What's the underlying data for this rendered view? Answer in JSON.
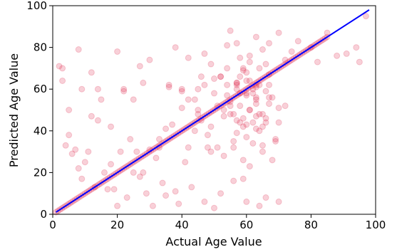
{
  "chart_data": {
    "type": "scatter",
    "title": "",
    "xlabel": "Actual Age Value",
    "ylabel": "Predicted Age Value",
    "xlim": [
      0,
      100
    ],
    "ylim": [
      0,
      100
    ],
    "xticks": [
      "0",
      "20",
      "40",
      "60",
      "80",
      "100"
    ],
    "yticks": [
      "0",
      "20",
      "40",
      "60",
      "80",
      "100"
    ],
    "grid": false,
    "legend": "none",
    "colors": {
      "points": "#dc143c",
      "line": "#0000ff",
      "axis": "#000000"
    },
    "point_opacity": 0.2,
    "reference_line": {
      "x": [
        1,
        98
      ],
      "y": [
        1,
        98
      ]
    },
    "series": [
      {
        "x": [
          3,
          5,
          8,
          9,
          12,
          14,
          18,
          20,
          22,
          25,
          27,
          28,
          30,
          33,
          35,
          36,
          38,
          40,
          42,
          45,
          47,
          49,
          52,
          54,
          55,
          57,
          59,
          61,
          63,
          65,
          67,
          70,
          72,
          74,
          76,
          80,
          82,
          85,
          88,
          91,
          94,
          95,
          97,
          2,
          3,
          4,
          5,
          6,
          7,
          8,
          9,
          10,
          11,
          12,
          13,
          14,
          15,
          16,
          17,
          18,
          19,
          20,
          21,
          22,
          23,
          24,
          25,
          26,
          27,
          28,
          29,
          30,
          31,
          32,
          33,
          34,
          35,
          36,
          37,
          38,
          39,
          40,
          41,
          42,
          43,
          44,
          45,
          46,
          47,
          48,
          49,
          50,
          51,
          52,
          53,
          54,
          55,
          56,
          57,
          58,
          59,
          60,
          61,
          62,
          63,
          64,
          65,
          66,
          67,
          68,
          69,
          70
        ],
        "y": [
          64,
          50,
          79,
          60,
          68,
          45,
          42,
          78,
          60,
          55,
          71,
          63,
          74,
          36,
          41,
          61,
          80,
          59,
          75,
          60,
          77,
          72,
          66,
          81,
          88,
          82,
          70,
          76,
          85,
          79,
          82,
          87,
          74,
          78,
          83,
          80,
          73,
          87,
          76,
          77,
          80,
          73,
          95,
          71,
          70,
          33,
          38,
          29,
          31,
          22,
          17,
          25,
          30,
          47,
          13,
          60,
          55,
          20,
          12,
          24,
          12,
          4,
          30,
          59,
          8,
          36,
          20,
          30,
          18,
          20,
          10,
          31,
          4,
          27,
          32,
          15,
          9,
          62,
          43,
          11,
          5,
          51,
          25,
          32,
          13,
          55,
          48,
          66,
          6,
          32,
          42,
          3,
          32,
          10,
          50,
          57,
          48,
          16,
          62,
          44,
          17,
          6,
          23,
          58,
          53,
          4,
          33,
          8,
          56,
          26,
          35,
          6
        ]
      },
      {
        "x": [
          40,
          42,
          45,
          47,
          50,
          52,
          55,
          57,
          58,
          60,
          62,
          63,
          65,
          67,
          68,
          70,
          44,
          46,
          48,
          51,
          53,
          56,
          59,
          61,
          64,
          66,
          69,
          72,
          50,
          54,
          57,
          60,
          63,
          66,
          49,
          53,
          56,
          59,
          62,
          65,
          58,
          61,
          64,
          67,
          57,
          60,
          63,
          66,
          55,
          58,
          61,
          64,
          67,
          70,
          54,
          57,
          60,
          63,
          66,
          56,
          59,
          62,
          65,
          60,
          63,
          57,
          60,
          63,
          58,
          61,
          64,
          59
        ],
        "y": [
          60,
          55,
          50,
          62,
          58,
          66,
          52,
          63,
          58,
          57,
          60,
          55,
          48,
          62,
          56,
          44,
          40,
          45,
          38,
          52,
          47,
          35,
          42,
          50,
          40,
          46,
          36,
          52,
          65,
          70,
          63,
          68,
          61,
          72,
          30,
          28,
          32,
          26,
          34,
          30,
          75,
          73,
          70,
          67,
          45,
          43,
          47,
          44,
          54,
          52,
          50,
          48,
          53,
          51,
          62,
          60,
          58,
          56,
          59,
          48,
          46,
          44,
          42,
          64,
          62,
          39,
          37,
          41,
          66,
          64,
          62,
          69
        ]
      }
    ]
  }
}
